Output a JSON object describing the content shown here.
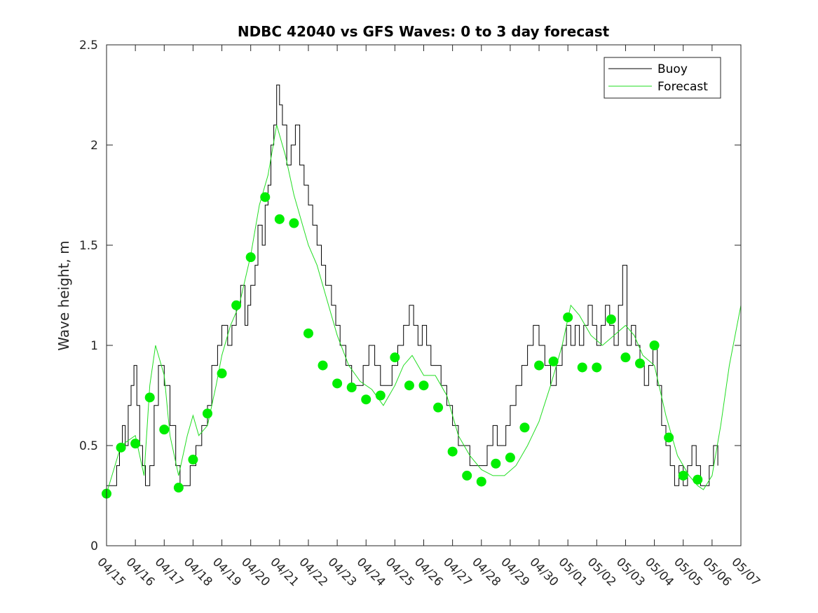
{
  "chart_data": {
    "type": "line",
    "title": "NDBC 42040 vs GFS Waves: 0 to 3 day forecast",
    "xlabel": "",
    "ylabel": "Wave height, m",
    "x_tick_labels": [
      "04/15",
      "04/16",
      "04/17",
      "04/18",
      "04/19",
      "04/20",
      "04/21",
      "04/22",
      "04/23",
      "04/24",
      "04/25",
      "04/26",
      "04/27",
      "04/28",
      "04/29",
      "04/30",
      "05/01",
      "05/02",
      "05/03",
      "05/04",
      "05/05",
      "05/06",
      "05/07"
    ],
    "y_ticks": [
      0,
      0.5,
      1,
      1.5,
      2,
      2.5
    ],
    "y_tick_labels": [
      "0",
      "0.5",
      "1",
      "1.5",
      "2",
      "2.5"
    ],
    "xlim": [
      0,
      22
    ],
    "ylim": [
      0,
      2.5
    ],
    "grid": false,
    "legend_position": "top-right",
    "colors": {
      "buoy": "#000000",
      "forecast": "#22dd22",
      "markers": "#00ee00"
    },
    "series": [
      {
        "name": "Buoy",
        "x": [
          0,
          0.25,
          0.35,
          0.45,
          0.55,
          0.65,
          0.75,
          0.85,
          0.95,
          1.05,
          1.15,
          1.25,
          1.35,
          1.5,
          1.65,
          1.8,
          2.0,
          2.2,
          2.4,
          2.55,
          2.75,
          2.9,
          3.1,
          3.3,
          3.5,
          3.65,
          3.85,
          4.0,
          4.2,
          4.35,
          4.5,
          4.65,
          4.8,
          4.9,
          5.0,
          5.15,
          5.25,
          5.4,
          5.5,
          5.6,
          5.7,
          5.8,
          5.9,
          6.0,
          6.1,
          6.25,
          6.4,
          6.55,
          6.7,
          6.85,
          7.0,
          7.15,
          7.3,
          7.45,
          7.6,
          7.8,
          7.95,
          8.1,
          8.3,
          8.5,
          8.7,
          8.9,
          9.1,
          9.3,
          9.5,
          9.7,
          9.9,
          10.1,
          10.3,
          10.5,
          10.65,
          10.8,
          10.95,
          11.1,
          11.25,
          11.4,
          11.6,
          11.8,
          12.0,
          12.2,
          12.4,
          12.6,
          12.8,
          13.0,
          13.2,
          13.4,
          13.55,
          13.7,
          13.85,
          14.0,
          14.2,
          14.4,
          14.6,
          14.8,
          15.0,
          15.2,
          15.4,
          15.6,
          15.8,
          15.95,
          16.1,
          16.25,
          16.4,
          16.55,
          16.7,
          16.85,
          17.0,
          17.15,
          17.3,
          17.45,
          17.6,
          17.75,
          17.9,
          18.05,
          18.2,
          18.35,
          18.5,
          18.65,
          18.8,
          18.95,
          19.1,
          19.25,
          19.4,
          19.55,
          19.7,
          19.85,
          20.0,
          20.15,
          20.3,
          20.45,
          20.6,
          20.75,
          20.9,
          21.05,
          21.2
        ],
        "values": [
          0.3,
          0.3,
          0.4,
          0.5,
          0.6,
          0.5,
          0.7,
          0.8,
          0.9,
          0.7,
          0.5,
          0.4,
          0.3,
          0.4,
          0.7,
          0.9,
          0.8,
          0.6,
          0.4,
          0.3,
          0.3,
          0.4,
          0.5,
          0.6,
          0.7,
          0.9,
          1.0,
          1.1,
          1.0,
          1.1,
          1.2,
          1.3,
          1.1,
          1.2,
          1.3,
          1.4,
          1.6,
          1.5,
          1.7,
          1.8,
          2.0,
          2.1,
          2.3,
          2.2,
          2.1,
          1.9,
          2.0,
          2.1,
          1.9,
          1.8,
          1.7,
          1.6,
          1.5,
          1.4,
          1.3,
          1.2,
          1.1,
          1.0,
          0.9,
          0.8,
          0.8,
          0.9,
          1.0,
          0.9,
          0.8,
          0.8,
          0.9,
          1.0,
          1.1,
          1.2,
          1.1,
          1.0,
          1.1,
          1.0,
          0.9,
          0.9,
          0.8,
          0.7,
          0.6,
          0.5,
          0.5,
          0.4,
          0.4,
          0.4,
          0.5,
          0.6,
          0.5,
          0.5,
          0.6,
          0.7,
          0.8,
          0.9,
          1.0,
          1.1,
          1.0,
          0.9,
          0.8,
          0.9,
          1.0,
          1.1,
          1.0,
          1.1,
          1.0,
          1.1,
          1.2,
          1.1,
          1.0,
          1.1,
          1.2,
          1.1,
          1.0,
          1.2,
          1.4,
          1.0,
          1.1,
          1.0,
          0.9,
          0.8,
          0.9,
          1.0,
          0.8,
          0.6,
          0.5,
          0.4,
          0.3,
          0.4,
          0.3,
          0.4,
          0.5,
          0.4,
          0.3,
          0.3,
          0.4,
          0.5,
          0.4
        ]
      },
      {
        "name": "Forecast",
        "x": [
          0,
          0.5,
          1.0,
          1.3,
          1.5,
          1.7,
          2.0,
          2.2,
          2.5,
          2.8,
          3.0,
          3.2,
          3.5,
          3.8,
          4.0,
          4.3,
          4.6,
          5.0,
          5.3,
          5.6,
          5.9,
          6.2,
          6.5,
          6.8,
          7.0,
          7.3,
          7.6,
          8.0,
          8.4,
          8.8,
          9.2,
          9.6,
          10.0,
          10.3,
          10.6,
          11.0,
          11.4,
          11.8,
          12.2,
          12.6,
          13.0,
          13.4,
          13.8,
          14.2,
          14.6,
          15.0,
          15.4,
          15.8,
          16.1,
          16.4,
          16.8,
          17.2,
          17.6,
          18.0,
          18.3,
          18.6,
          19.0,
          19.4,
          19.8,
          20.2,
          20.5,
          20.7,
          21.0,
          21.3,
          21.6,
          22.0
        ],
        "values": [
          0.26,
          0.5,
          0.55,
          0.35,
          0.8,
          1.0,
          0.85,
          0.55,
          0.35,
          0.55,
          0.65,
          0.55,
          0.6,
          0.8,
          0.95,
          1.1,
          1.2,
          1.45,
          1.7,
          1.85,
          2.1,
          1.95,
          1.75,
          1.6,
          1.5,
          1.4,
          1.25,
          1.05,
          0.9,
          0.82,
          0.78,
          0.7,
          0.8,
          0.9,
          0.95,
          0.85,
          0.85,
          0.75,
          0.55,
          0.45,
          0.38,
          0.35,
          0.35,
          0.4,
          0.5,
          0.62,
          0.8,
          1.0,
          1.2,
          1.15,
          1.05,
          1.0,
          1.05,
          1.1,
          1.05,
          0.95,
          0.9,
          0.65,
          0.45,
          0.35,
          0.3,
          0.28,
          0.35,
          0.6,
          0.9,
          1.2
        ]
      }
    ],
    "forecast_markers": {
      "x": [
        0,
        0.5,
        1,
        1.5,
        2,
        2.5,
        3,
        3.5,
        4,
        4.5,
        5,
        5.5,
        6,
        6.5,
        7,
        7.5,
        8,
        8.5,
        9,
        9.5,
        10,
        10.5,
        11,
        11.5,
        12,
        12.5,
        13,
        13.5,
        14,
        14.5,
        15,
        15.5,
        16,
        16.5,
        17,
        17.5,
        18,
        18.5,
        19,
        19.5,
        20,
        20.5
      ],
      "values": [
        0.26,
        0.49,
        0.51,
        0.74,
        0.58,
        0.29,
        0.43,
        0.66,
        0.86,
        1.2,
        1.44,
        1.74,
        1.63,
        1.61,
        1.06,
        0.9,
        0.81,
        0.79,
        0.73,
        0.75,
        0.94,
        0.8,
        0.8,
        0.69,
        0.47,
        0.35,
        0.32,
        0.41,
        0.44,
        0.59,
        0.9,
        0.92,
        1.14,
        0.89,
        0.89,
        1.13,
        0.94,
        0.91,
        1.0,
        0.54,
        0.35,
        0.33
      ]
    }
  }
}
